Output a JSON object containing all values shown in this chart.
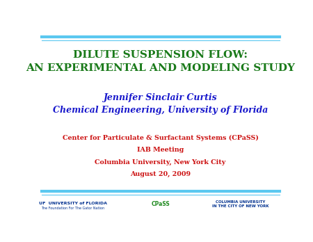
{
  "bg_color": "#ffffff",
  "top_line_color1": "#5bc8f0",
  "top_line_color2": "#5bc8f0",
  "title_line1": "DILUTE SUSPENSION FLOW:",
  "title_line2": "AN EXPERIMENTAL AND MODELING STUDY",
  "title_color": "#1a7a1a",
  "title_fontsize": 11.0,
  "author_line1": "Jennifer Sinclair Curtis",
  "author_line2": "Chemical Engineering, University of Florida",
  "author_color": "#1818cc",
  "author_fontsize": 9.0,
  "subtitle_lines": [
    "Center for Particulate & Surfactant Systems (CPaSS)",
    "IAB Meeting",
    "Columbia University, New York City",
    "August 20, 2009"
  ],
  "subtitle_color": "#cc1111",
  "subtitle_fontsize": 6.8,
  "footer_uf_color": "#00308F",
  "footer_cpas_color": "#228B22",
  "footer_columbia_color": "#00308F"
}
